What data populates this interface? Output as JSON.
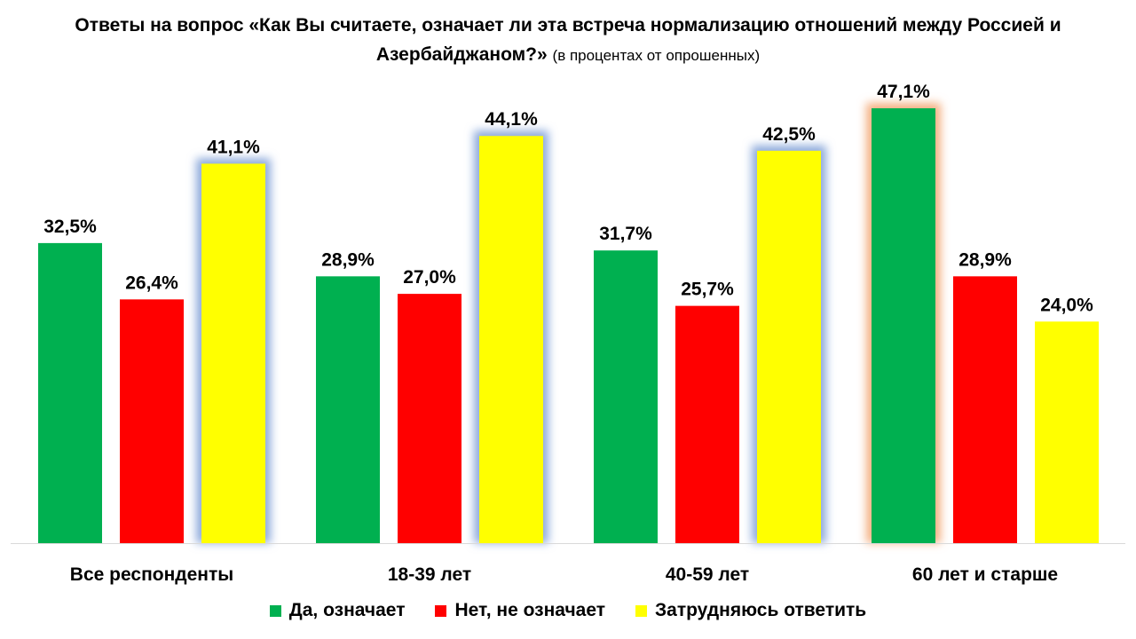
{
  "chart_data": {
    "type": "bar",
    "title": "Ответы на вопрос «Как Вы считаете, означает ли эта встреча нормализацию отношений между Россией и Азербайджаном?»",
    "subtitle": "(в процентах от опрошенных)",
    "categories": [
      "Все респонденты",
      "18-39 лет",
      "40-59 лет",
      "60 лет и старше"
    ],
    "series": [
      {
        "name": "Да, означает",
        "color": "#00b050",
        "values": [
          32.5,
          28.9,
          31.7,
          47.1
        ],
        "labels": [
          "32,5%",
          "28,9%",
          "31,7%",
          "47,1%"
        ]
      },
      {
        "name": "Нет, не означает",
        "color": "#ff0000",
        "values": [
          26.4,
          27.0,
          25.7,
          28.9
        ],
        "labels": [
          "26,4%",
          "27,0%",
          "25,7%",
          "28,9%"
        ]
      },
      {
        "name": "Затрудняюсь ответить",
        "color": "#ffff00",
        "values": [
          41.1,
          44.1,
          42.5,
          24.0
        ],
        "labels": [
          "41,1%",
          "44,1%",
          "42,5%",
          "24,0%"
        ]
      }
    ],
    "highlighted_bars": [
      {
        "category": "Все респонденты",
        "series": "Затрудняюсь ответить",
        "glow": "#8eaadb"
      },
      {
        "category": "18-39 лет",
        "series": "Затрудняюсь ответить",
        "glow": "#8eaadb"
      },
      {
        "category": "40-59 лет",
        "series": "Затрудняюсь ответить",
        "glow": "#8eaadb"
      },
      {
        "category": "60 лет и старше",
        "series": "Да, означает",
        "glow": "#f4b183"
      }
    ],
    "ylim": [
      0,
      50
    ],
    "grid": false,
    "legend_position": "bottom"
  }
}
